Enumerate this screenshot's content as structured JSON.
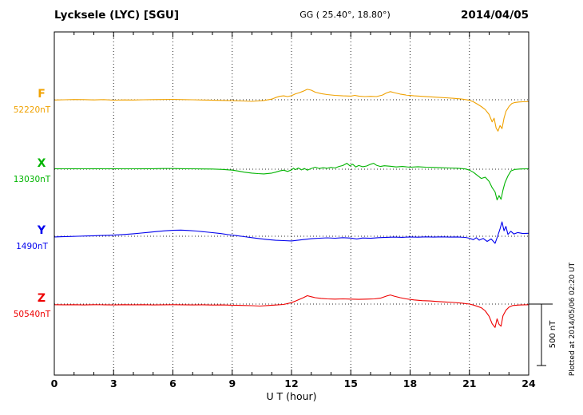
{
  "header": {
    "station": "Lycksele (LYC)  [SGU]",
    "gg_coords": "GG ( 25.40°,  18.80°)",
    "date": "2014/04/05"
  },
  "axis": {
    "xlabel": "U T (hour)",
    "tick_labels": [
      "0",
      "3",
      "6",
      "9",
      "12",
      "15",
      "18",
      "21",
      "24"
    ]
  },
  "scale_bar": {
    "label": "500 nT"
  },
  "footer": {
    "plotted_note": "Plotted at 2014/05/06 02:20 UT"
  },
  "chart_data": {
    "type": "line",
    "title": "Magnetogram Lycksele (LYC) [SGU] 2014/04/05",
    "xlabel": "U T (hour)",
    "x_unit": "hour",
    "x_range": [
      0,
      24
    ],
    "x_major_ticks": [
      0,
      3,
      6,
      9,
      12,
      15,
      18,
      21,
      24
    ],
    "x_minor_tick_step": 1,
    "grid": "dotted vertical lines at 3-hour marks; dotted horizontal baseline per component",
    "scale_bar_nT": 500,
    "values_are": "offset_nT_from_baseline",
    "series": [
      {
        "name": "F",
        "baseline_label": "52220nT",
        "baseline_nT": 52220,
        "color": "#f0a202",
        "points": [
          [
            0,
            -2
          ],
          [
            0.5,
            0
          ],
          [
            1,
            2
          ],
          [
            1.5,
            1
          ],
          [
            2,
            -1
          ],
          [
            2.5,
            1
          ],
          [
            3,
            -3
          ],
          [
            3.5,
            -1
          ],
          [
            4,
            -2
          ],
          [
            4.5,
            0
          ],
          [
            5,
            1
          ],
          [
            5.5,
            2
          ],
          [
            6,
            3
          ],
          [
            6.5,
            1
          ],
          [
            7,
            0
          ],
          [
            7.5,
            -2
          ],
          [
            8,
            -4
          ],
          [
            8.5,
            -5
          ],
          [
            9,
            -7
          ],
          [
            9.5,
            -10
          ],
          [
            10,
            -13
          ],
          [
            10.3,
            -10
          ],
          [
            10.6,
            -6
          ],
          [
            11,
            5
          ],
          [
            11.2,
            18
          ],
          [
            11.4,
            28
          ],
          [
            11.6,
            32
          ],
          [
            11.8,
            26
          ],
          [
            12,
            33
          ],
          [
            12.2,
            48
          ],
          [
            12.4,
            58
          ],
          [
            12.6,
            70
          ],
          [
            12.8,
            85
          ],
          [
            13,
            78
          ],
          [
            13.2,
            62
          ],
          [
            13.5,
            50
          ],
          [
            13.8,
            42
          ],
          [
            14.2,
            36
          ],
          [
            14.6,
            32
          ],
          [
            15,
            30
          ],
          [
            15.2,
            36
          ],
          [
            15.4,
            30
          ],
          [
            15.7,
            26
          ],
          [
            16,
            28
          ],
          [
            16.3,
            26
          ],
          [
            16.6,
            38
          ],
          [
            16.8,
            55
          ],
          [
            17,
            66
          ],
          [
            17.2,
            58
          ],
          [
            17.5,
            46
          ],
          [
            17.8,
            38
          ],
          [
            18.2,
            32
          ],
          [
            18.6,
            28
          ],
          [
            19,
            24
          ],
          [
            19.4,
            20
          ],
          [
            19.8,
            16
          ],
          [
            20.2,
            12
          ],
          [
            20.6,
            6
          ],
          [
            21,
            -4
          ],
          [
            21.2,
            -16
          ],
          [
            21.4,
            -35
          ],
          [
            21.6,
            -55
          ],
          [
            21.8,
            -80
          ],
          [
            22,
            -120
          ],
          [
            22.15,
            -180
          ],
          [
            22.25,
            -150
          ],
          [
            22.35,
            -230
          ],
          [
            22.45,
            -255
          ],
          [
            22.55,
            -210
          ],
          [
            22.65,
            -235
          ],
          [
            22.75,
            -150
          ],
          [
            22.85,
            -95
          ],
          [
            23,
            -55
          ],
          [
            23.15,
            -30
          ],
          [
            23.3,
            -22
          ],
          [
            23.5,
            -18
          ],
          [
            23.7,
            -16
          ],
          [
            24,
            -14
          ]
        ]
      },
      {
        "name": "X",
        "baseline_label": "13030nT",
        "baseline_nT": 13030,
        "color": "#00b400",
        "points": [
          [
            0,
            4
          ],
          [
            0.5,
            3
          ],
          [
            1,
            4
          ],
          [
            1.5,
            3
          ],
          [
            2,
            4
          ],
          [
            2.5,
            3
          ],
          [
            3,
            4
          ],
          [
            3.5,
            3
          ],
          [
            4,
            3
          ],
          [
            4.5,
            4
          ],
          [
            5,
            4
          ],
          [
            5.5,
            5
          ],
          [
            6,
            5
          ],
          [
            6.5,
            4
          ],
          [
            7,
            3
          ],
          [
            7.5,
            2
          ],
          [
            8,
            1
          ],
          [
            8.5,
            -2
          ],
          [
            9,
            -8
          ],
          [
            9.3,
            -15
          ],
          [
            9.6,
            -24
          ],
          [
            10,
            -32
          ],
          [
            10.3,
            -36
          ],
          [
            10.6,
            -38
          ],
          [
            11,
            -32
          ],
          [
            11.2,
            -24
          ],
          [
            11.4,
            -14
          ],
          [
            11.6,
            -8
          ],
          [
            11.8,
            -18
          ],
          [
            12,
            -6
          ],
          [
            12.1,
            8
          ],
          [
            12.2,
            -4
          ],
          [
            12.35,
            10
          ],
          [
            12.5,
            -6
          ],
          [
            12.65,
            6
          ],
          [
            12.8,
            -8
          ],
          [
            13,
            6
          ],
          [
            13.2,
            16
          ],
          [
            13.4,
            6
          ],
          [
            13.6,
            12
          ],
          [
            13.8,
            8
          ],
          [
            14,
            14
          ],
          [
            14.2,
            10
          ],
          [
            14.4,
            22
          ],
          [
            14.6,
            30
          ],
          [
            14.8,
            48
          ],
          [
            14.95,
            28
          ],
          [
            15.1,
            40
          ],
          [
            15.25,
            18
          ],
          [
            15.4,
            30
          ],
          [
            15.6,
            20
          ],
          [
            15.8,
            26
          ],
          [
            16,
            40
          ],
          [
            16.15,
            48
          ],
          [
            16.3,
            32
          ],
          [
            16.5,
            22
          ],
          [
            16.7,
            28
          ],
          [
            17,
            24
          ],
          [
            17.3,
            18
          ],
          [
            17.6,
            22
          ],
          [
            18,
            16
          ],
          [
            18.4,
            20
          ],
          [
            18.8,
            16
          ],
          [
            19.2,
            14
          ],
          [
            19.6,
            12
          ],
          [
            20,
            10
          ],
          [
            20.4,
            8
          ],
          [
            20.8,
            2
          ],
          [
            21,
            -8
          ],
          [
            21.2,
            -25
          ],
          [
            21.4,
            -50
          ],
          [
            21.6,
            -75
          ],
          [
            21.8,
            -65
          ],
          [
            22,
            -100
          ],
          [
            22.15,
            -150
          ],
          [
            22.3,
            -185
          ],
          [
            22.4,
            -250
          ],
          [
            22.5,
            -215
          ],
          [
            22.6,
            -245
          ],
          [
            22.7,
            -170
          ],
          [
            22.8,
            -110
          ],
          [
            22.95,
            -55
          ],
          [
            23.1,
            -15
          ],
          [
            23.3,
            -2
          ],
          [
            23.6,
            2
          ],
          [
            24,
            3
          ]
        ]
      },
      {
        "name": "Y",
        "baseline_label": "1490nT",
        "baseline_nT": 1490,
        "color": "#0000ee",
        "points": [
          [
            0,
            -6
          ],
          [
            0.4,
            -4
          ],
          [
            0.8,
            -2
          ],
          [
            1.2,
            0
          ],
          [
            1.6,
            2
          ],
          [
            2,
            4
          ],
          [
            2.4,
            6
          ],
          [
            2.8,
            8
          ],
          [
            3.2,
            11
          ],
          [
            3.6,
            15
          ],
          [
            4,
            20
          ],
          [
            4.4,
            26
          ],
          [
            4.8,
            32
          ],
          [
            5.2,
            38
          ],
          [
            5.6,
            44
          ],
          [
            6,
            48
          ],
          [
            6.4,
            50
          ],
          [
            6.8,
            47
          ],
          [
            7.2,
            42
          ],
          [
            7.6,
            36
          ],
          [
            8,
            29
          ],
          [
            8.4,
            22
          ],
          [
            8.8,
            13
          ],
          [
            9.2,
            5
          ],
          [
            9.6,
            -3
          ],
          [
            10,
            -12
          ],
          [
            10.4,
            -20
          ],
          [
            10.8,
            -27
          ],
          [
            11.2,
            -33
          ],
          [
            11.6,
            -36
          ],
          [
            12,
            -38
          ],
          [
            12.3,
            -33
          ],
          [
            12.6,
            -27
          ],
          [
            13,
            -20
          ],
          [
            13.4,
            -16
          ],
          [
            13.8,
            -13
          ],
          [
            14.2,
            -16
          ],
          [
            14.6,
            -12
          ],
          [
            15,
            -15
          ],
          [
            15.3,
            -22
          ],
          [
            15.6,
            -14
          ],
          [
            16,
            -17
          ],
          [
            16.4,
            -12
          ],
          [
            16.8,
            -9
          ],
          [
            17.2,
            -7
          ],
          [
            17.6,
            -9
          ],
          [
            18,
            -6
          ],
          [
            18.4,
            -8
          ],
          [
            18.8,
            -5
          ],
          [
            19.2,
            -7
          ],
          [
            19.6,
            -5
          ],
          [
            20,
            -7
          ],
          [
            20.4,
            -6
          ],
          [
            20.8,
            -10
          ],
          [
            21,
            -16
          ],
          [
            21.2,
            -28
          ],
          [
            21.35,
            -12
          ],
          [
            21.5,
            -32
          ],
          [
            21.7,
            -18
          ],
          [
            21.9,
            -42
          ],
          [
            22.1,
            -22
          ],
          [
            22.3,
            -58
          ],
          [
            22.45,
            10
          ],
          [
            22.55,
            60
          ],
          [
            22.65,
            117
          ],
          [
            22.75,
            45
          ],
          [
            22.85,
            80
          ],
          [
            22.95,
            15
          ],
          [
            23.1,
            40
          ],
          [
            23.25,
            18
          ],
          [
            23.45,
            30
          ],
          [
            23.7,
            22
          ],
          [
            24,
            24
          ]
        ]
      },
      {
        "name": "Z",
        "baseline_label": "50540nT",
        "baseline_nT": 50540,
        "color": "#ee0000",
        "points": [
          [
            0,
            -5
          ],
          [
            0.5,
            -6
          ],
          [
            1,
            -5
          ],
          [
            1.5,
            -7
          ],
          [
            2,
            -5
          ],
          [
            2.5,
            -6
          ],
          [
            3,
            -7
          ],
          [
            3.5,
            -5
          ],
          [
            4,
            -6
          ],
          [
            4.5,
            -5
          ],
          [
            5,
            -7
          ],
          [
            5.5,
            -6
          ],
          [
            6,
            -5
          ],
          [
            6.5,
            -6
          ],
          [
            7,
            -7
          ],
          [
            7.5,
            -6
          ],
          [
            8,
            -8
          ],
          [
            8.5,
            -7
          ],
          [
            9,
            -9
          ],
          [
            9.5,
            -11
          ],
          [
            10,
            -13
          ],
          [
            10.4,
            -16
          ],
          [
            10.8,
            -12
          ],
          [
            11.2,
            -8
          ],
          [
            11.6,
            -3
          ],
          [
            12,
            12
          ],
          [
            12.2,
            24
          ],
          [
            12.4,
            38
          ],
          [
            12.6,
            52
          ],
          [
            12.8,
            68
          ],
          [
            13,
            60
          ],
          [
            13.2,
            52
          ],
          [
            13.5,
            46
          ],
          [
            13.8,
            42
          ],
          [
            14.2,
            40
          ],
          [
            14.6,
            42
          ],
          [
            15,
            40
          ],
          [
            15.4,
            38
          ],
          [
            15.8,
            40
          ],
          [
            16.2,
            42
          ],
          [
            16.5,
            48
          ],
          [
            16.8,
            65
          ],
          [
            17,
            74
          ],
          [
            17.2,
            64
          ],
          [
            17.5,
            52
          ],
          [
            17.8,
            42
          ],
          [
            18.2,
            34
          ],
          [
            18.6,
            28
          ],
          [
            19,
            25
          ],
          [
            19.4,
            21
          ],
          [
            19.8,
            17
          ],
          [
            20.2,
            13
          ],
          [
            20.6,
            8
          ],
          [
            21,
            0
          ],
          [
            21.2,
            -8
          ],
          [
            21.4,
            -18
          ],
          [
            21.6,
            -30
          ],
          [
            21.8,
            -55
          ],
          [
            22,
            -100
          ],
          [
            22.15,
            -160
          ],
          [
            22.3,
            -190
          ],
          [
            22.4,
            -120
          ],
          [
            22.5,
            -165
          ],
          [
            22.6,
            -180
          ],
          [
            22.7,
            -95
          ],
          [
            22.85,
            -50
          ],
          [
            23,
            -25
          ],
          [
            23.2,
            -12
          ],
          [
            23.5,
            -8
          ],
          [
            23.8,
            -6
          ],
          [
            24,
            -5
          ]
        ]
      }
    ]
  }
}
